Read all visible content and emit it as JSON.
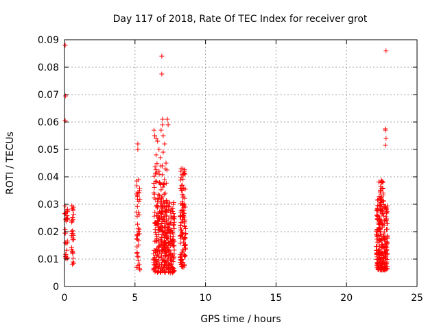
{
  "chart_data": {
    "type": "scatter",
    "title": "Day 117 of 2018, Rate Of TEC Index for receiver grot",
    "xlabel": "GPS time / hours",
    "ylabel": "ROTI / TECUs",
    "xlim": [
      0,
      25
    ],
    "ylim": [
      0,
      0.09
    ],
    "xticks": [
      0,
      5,
      10,
      15,
      20,
      25
    ],
    "yticks": [
      0,
      0.01,
      0.02,
      0.03,
      0.04,
      0.05,
      0.06,
      0.07,
      0.08,
      0.09
    ],
    "grid": true,
    "marker": "plus",
    "color": "#ff0000",
    "series": [
      {
        "clusters": [
          {
            "x_range": [
              0.0,
              0.25
            ],
            "y_range": [
              0.01,
              0.03
            ],
            "count": 30
          },
          {
            "x_range": [
              0.5,
              0.65
            ],
            "y_range": [
              0.008,
              0.03
            ],
            "count": 30
          },
          {
            "x_range": [
              5.1,
              5.35
            ],
            "y_range": [
              0.006,
              0.04
            ],
            "count": 40
          },
          {
            "x_range": [
              6.3,
              7.8
            ],
            "y_range": [
              0.005,
              0.032
            ],
            "count": 350
          },
          {
            "x_range": [
              6.3,
              7.3
            ],
            "y_range": [
              0.032,
              0.045
            ],
            "count": 40
          },
          {
            "x_range": [
              8.2,
              8.6
            ],
            "y_range": [
              0.007,
              0.043
            ],
            "count": 120
          },
          {
            "x_range": [
              22.1,
              22.9
            ],
            "y_range": [
              0.006,
              0.03
            ],
            "count": 250
          },
          {
            "x_range": [
              22.2,
              22.7
            ],
            "y_range": [
              0.03,
              0.039
            ],
            "count": 30
          }
        ],
        "points": [
          [
            0.05,
            0.088
          ],
          [
            0.08,
            0.0695
          ],
          [
            0.05,
            0.0605
          ],
          [
            0.1,
            0.027
          ],
          [
            5.2,
            0.052
          ],
          [
            5.2,
            0.05
          ],
          [
            5.25,
            0.039
          ],
          [
            6.35,
            0.057
          ],
          [
            6.4,
            0.055
          ],
          [
            6.5,
            0.054
          ],
          [
            6.6,
            0.053
          ],
          [
            6.7,
            0.05
          ],
          [
            6.9,
            0.084
          ],
          [
            6.9,
            0.0775
          ],
          [
            6.95,
            0.061
          ],
          [
            6.95,
            0.059
          ],
          [
            6.85,
            0.057
          ],
          [
            7.0,
            0.055
          ],
          [
            7.1,
            0.052
          ],
          [
            7.3,
            0.061
          ],
          [
            7.35,
            0.059
          ],
          [
            6.5,
            0.048
          ],
          [
            6.8,
            0.047
          ],
          [
            7.0,
            0.049
          ],
          [
            7.2,
            0.045
          ],
          [
            8.4,
            0.043
          ],
          [
            8.5,
            0.042
          ],
          [
            8.55,
            0.041
          ],
          [
            22.8,
            0.086
          ],
          [
            22.75,
            0.0575
          ],
          [
            22.75,
            0.057
          ],
          [
            22.8,
            0.054
          ],
          [
            22.75,
            0.0515
          ]
        ]
      }
    ]
  }
}
